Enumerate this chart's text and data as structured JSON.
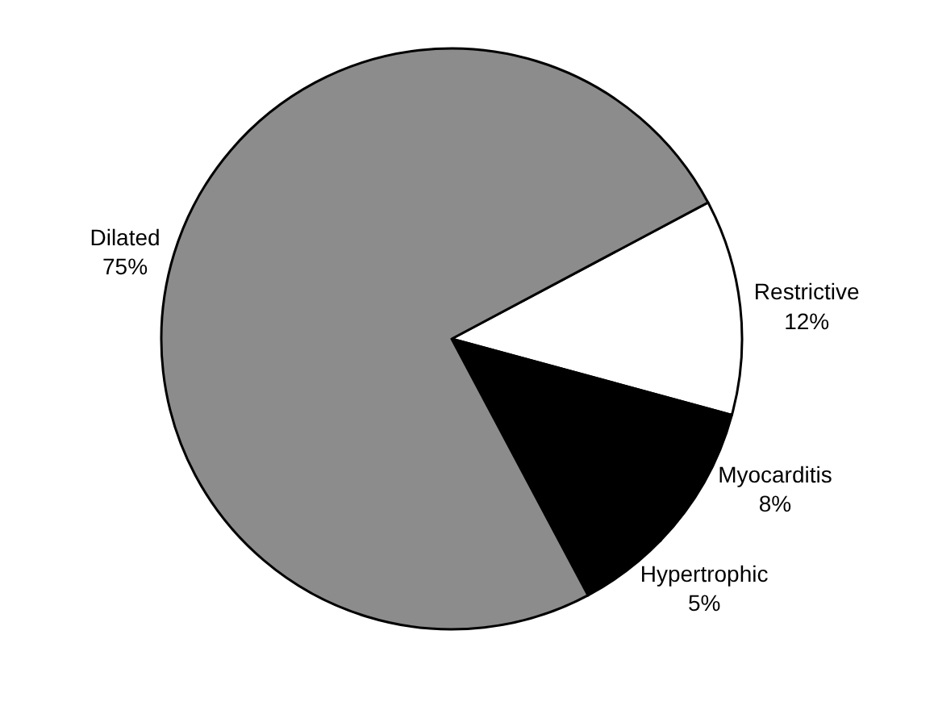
{
  "chart_data": {
    "type": "pie",
    "categories": [
      "Restrictive",
      "Myocarditis",
      "Hypertrophic",
      "Dilated"
    ],
    "values": [
      12,
      8,
      5,
      75
    ],
    "value_labels": [
      "12%",
      "8%",
      "5%",
      "75%"
    ],
    "colors": [
      "#ffffff",
      "#000000",
      "#000000",
      "#8c8c8c"
    ],
    "legend": false
  }
}
